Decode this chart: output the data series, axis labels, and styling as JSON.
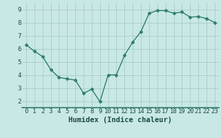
{
  "x": [
    0,
    1,
    2,
    3,
    4,
    5,
    6,
    7,
    8,
    9,
    10,
    11,
    12,
    13,
    14,
    15,
    16,
    17,
    18,
    19,
    20,
    21,
    22,
    23
  ],
  "y": [
    6.3,
    5.8,
    5.4,
    4.4,
    3.8,
    3.7,
    3.6,
    2.6,
    2.9,
    1.95,
    4.0,
    4.0,
    5.5,
    6.5,
    7.3,
    8.7,
    8.9,
    8.9,
    8.7,
    8.8,
    8.4,
    8.45,
    8.3,
    8.0
  ],
  "line_color": "#2e7d6e",
  "marker": "D",
  "marker_size": 2.5,
  "bg_color": "#c8e8e5",
  "grid_color": "#a8ccc9",
  "axis_bg": "#c8e8e5",
  "xlabel": "Humidex (Indice chaleur)",
  "xlabel_fontsize": 7.5,
  "yticks": [
    2,
    3,
    4,
    5,
    6,
    7,
    8,
    9
  ],
  "ylim": [
    1.5,
    9.5
  ],
  "xlim": [
    -0.5,
    23.5
  ],
  "xtick_labels": [
    "0",
    "1",
    "2",
    "3",
    "4",
    "5",
    "6",
    "7",
    "8",
    "9",
    "10",
    "11",
    "12",
    "13",
    "14",
    "15",
    "16",
    "17",
    "18",
    "19",
    "20",
    "21",
    "22",
    "23"
  ],
  "tick_fontsize": 6.5,
  "line_width": 1.0,
  "tick_color": "#1a4a4a",
  "label_color": "#1a4a4a"
}
